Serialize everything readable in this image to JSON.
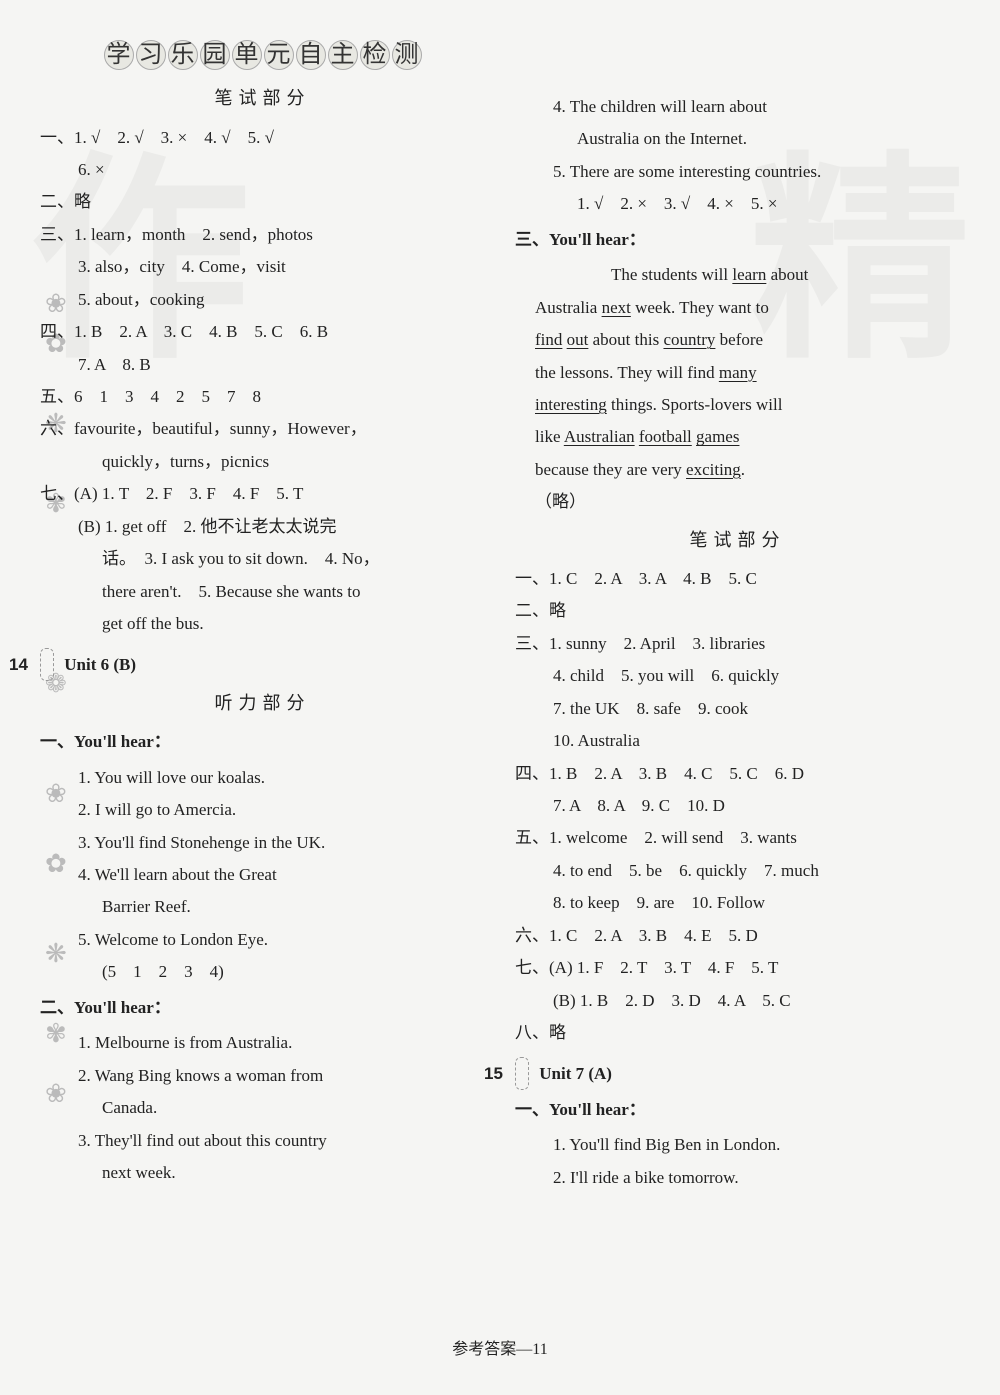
{
  "watermarks": {
    "left": "作",
    "right": "精"
  },
  "footer": "参考答案—11",
  "banner": "学习乐园单元自主检测",
  "left": {
    "written_title": "笔试部分",
    "s1": "一、1. √　2. √　3. ×　4. √　5. √",
    "s1b": "6. ×",
    "s2": "二、略",
    "s3a": "三、1. learn，month　2. send，photos",
    "s3b": "3. also，city　4. Come，visit",
    "s3c": "5. about，cooking",
    "s4": "四、1. B　2. A　3. C　4. B　5. C　6. B",
    "s4b": "7. A　8. B",
    "s5": "五、6　1　3　4　2　5　7　8",
    "s6a": "六、favourite，beautiful，sunny，However，",
    "s6b": "quickly，turns，picnics",
    "s7a": "七、(A) 1. T　2. F　3. F　4. F　5. T",
    "s7b": "(B) 1. get off　2. 他不让老太太说完",
    "s7c": "话。　3. I ask you to sit down.　4. No，",
    "s7d": "there aren't.　5. Because she wants to",
    "s7e": "get off the bus.",
    "unit_num": "14",
    "unit_label": "Unit 6 (B)",
    "listen_title": "听力部分",
    "h1": "一、You'll hear：",
    "h1_1": "1. You will love our koalas.",
    "h1_2": "2. I will go to Amercia.",
    "h1_3": "3. You'll find Stonehenge in the UK.",
    "h1_4a": "4. We'll learn about the Great",
    "h1_4b": "Barrier Reef.",
    "h1_5": "5. Welcome to London Eye.",
    "h1_ans": "(5　1　2　3　4)",
    "h2": "二、You'll hear：",
    "h2_1": "1. Melbourne is from Australia.",
    "h2_2a": "2. Wang Bing knows a woman from",
    "h2_2b": "Canada.",
    "h2_3a": "3. They'll find out about this country",
    "h2_3b": "next week."
  },
  "right": {
    "cont_4a": "4. The children will learn about",
    "cont_4b": "Australia on the Internet.",
    "cont_5": "5. There are some interesting countries.",
    "cont_ans": "1. √　2. ×　3. √　4. ×　5. ×",
    "h3": "三、You'll hear：",
    "p1a": "　　The students will ",
    "p1b": " about",
    "p2a": "Australia ",
    "p2b": " week. They want to",
    "p3a": " about this ",
    "p3b": " before",
    "p4": "the lessons. They will find ",
    "p5": " things. Sports-lovers will",
    "p6a": "like ",
    "p6b": " ",
    "p6c": " ",
    "p7a": "because they are very ",
    "p7b": ".",
    "u_learn": "learn",
    "u_next": "next",
    "u_find": "find",
    "u_out": "out",
    "u_country": "country",
    "u_many": "many",
    "u_interesting": "interesting",
    "u_australian": "Australian",
    "u_football": "football",
    "u_games": "games",
    "u_exciting": "exciting",
    "omit": "（略）",
    "written_title": "笔试部分",
    "w1": "一、1. C　2. A　3. A　4. B　5. C",
    "w2": "二、略",
    "w3a": "三、1. sunny　2. April　3. libraries",
    "w3b": "4. child　5. you will　6. quickly",
    "w3c": "7. the UK　8. safe　9. cook",
    "w3d": "10. Australia",
    "w4a": "四、1. B　2. A　3. B　4. C　5. C　6. D",
    "w4b": "7. A　8. A　9. C　10. D",
    "w5a": "五、1. welcome　2. will send　3. wants",
    "w5b": "4. to end　5. be　6. quickly　7. much",
    "w5c": "8. to keep　9. are　10. Follow",
    "w6": "六、1. C　2. A　3. B　4. E　5. D",
    "w7a": "七、(A) 1. F　2. T　3. T　4. F　5. T",
    "w7b": "(B) 1. B　2. D　3. D　4. A　5. C",
    "w8": "八、略",
    "unit_num": "15",
    "unit_label": "Unit 7 (A)",
    "rh1": "一、You'll hear：",
    "rh1_1": "1. You'll find Big Ben in London.",
    "rh1_2": "2. I'll ride a bike tomorrow."
  }
}
